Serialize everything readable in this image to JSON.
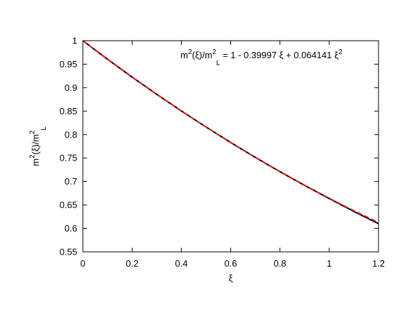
{
  "chart_data": {
    "type": "line",
    "xlabel": "ξ",
    "ylabel_parts": [
      "m",
      "2",
      "(ξ)/m",
      "2",
      "L"
    ],
    "annotation_parts": [
      "m",
      "2",
      "(ξ)/m",
      "2",
      "L",
      " = 1 - 0.39997 ξ + 0.064141 ξ",
      "2"
    ],
    "x": [
      0,
      0.1,
      0.2,
      0.3,
      0.4,
      0.5,
      0.6,
      0.7,
      0.8,
      0.9,
      1.0,
      1.1,
      1.2
    ],
    "series": [
      {
        "color": "#000000",
        "dash": false,
        "values": [
          1,
          0.9605,
          0.9224,
          0.8857,
          0.8502,
          0.816,
          0.783,
          0.7513,
          0.7208,
          0.6916,
          0.6636,
          0.6362,
          0.61
        ]
      },
      {
        "color": "#e41a1c",
        "dash": true,
        "values": [
          1,
          0.96064,
          0.92257,
          0.88578,
          0.85028,
          0.81605,
          0.78311,
          0.75145,
          0.72107,
          0.69198,
          0.66417,
          0.63764,
          0.6124
        ]
      }
    ],
    "xlim": [
      0,
      1.2
    ],
    "xticks": [
      0,
      0.2,
      0.4,
      0.6,
      0.8,
      1,
      1.2
    ],
    "ylim": [
      0.55,
      1.0
    ],
    "yticks": [
      0.55,
      0.6,
      0.65,
      0.7,
      0.75,
      0.8,
      0.85,
      0.9,
      0.95,
      1
    ]
  }
}
